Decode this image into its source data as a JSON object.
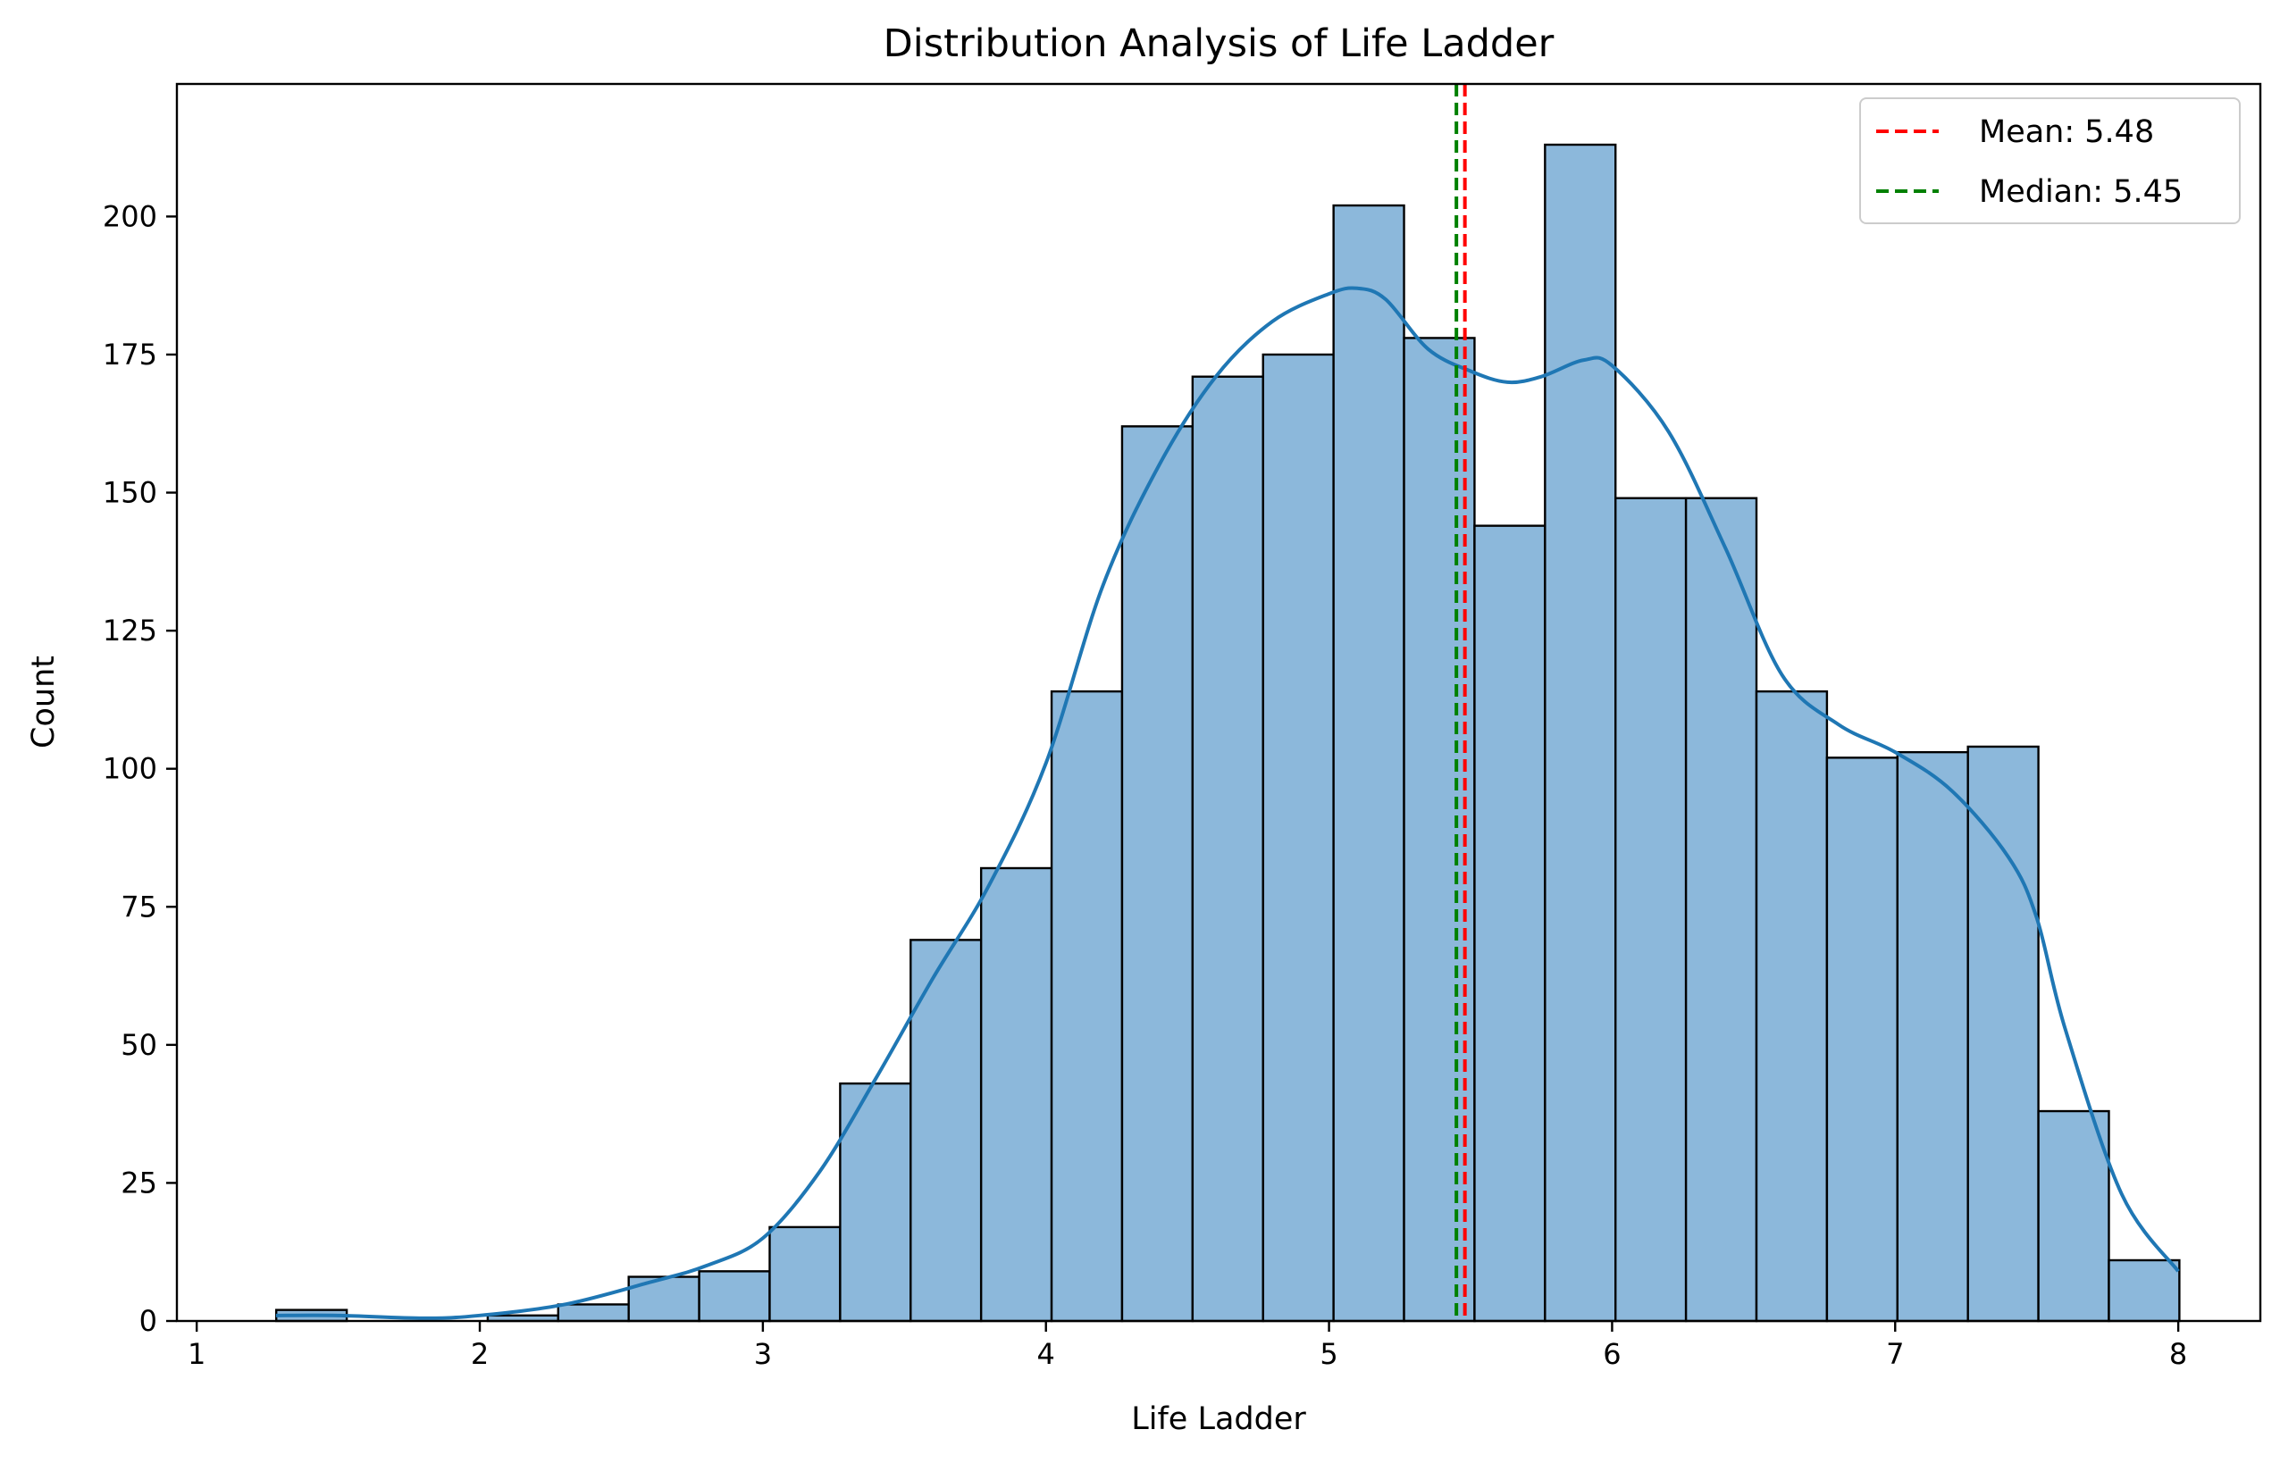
{
  "chart_data": {
    "type": "histogram",
    "title": "Distribution Analysis of Life Ladder",
    "xlabel": "Life Ladder",
    "ylabel": "Count",
    "xlim": [
      0.93,
      8.29
    ],
    "ylim": [
      0,
      224
    ],
    "xticks": [
      1,
      2,
      3,
      4,
      5,
      6,
      7,
      8
    ],
    "yticks": [
      0,
      25,
      50,
      75,
      100,
      125,
      150,
      175,
      200
    ],
    "grid": false,
    "legend_position": "top-right",
    "bar_color": "#8cb8db",
    "edge_color": "#000000",
    "bin_edges": [
      1.281,
      1.53,
      1.779,
      2.028,
      2.277,
      2.526,
      2.775,
      3.024,
      3.273,
      3.522,
      3.771,
      4.02,
      4.269,
      4.518,
      4.767,
      5.016,
      5.265,
      5.514,
      5.763,
      6.012,
      6.261,
      6.51,
      6.759,
      7.008,
      7.257,
      7.506,
      7.755,
      8.004
    ],
    "counts": [
      2,
      0,
      0,
      1,
      3,
      8,
      9,
      17,
      43,
      69,
      82,
      114,
      162,
      171,
      175,
      202,
      178,
      144,
      213,
      149,
      149,
      114,
      102,
      103,
      104,
      38,
      11
    ],
    "kde": {
      "color": "#1f77b4",
      "x": [
        1.28,
        1.5,
        1.8,
        2.0,
        2.3,
        2.6,
        2.8,
        3.0,
        3.2,
        3.4,
        3.6,
        3.8,
        4.0,
        4.2,
        4.4,
        4.6,
        4.8,
        5.0,
        5.1,
        5.2,
        5.35,
        5.5,
        5.63,
        5.75,
        5.9,
        6.0,
        6.2,
        6.4,
        6.6,
        6.8,
        7.0,
        7.2,
        7.4,
        7.5,
        7.6,
        7.8,
        8.0
      ],
      "y": [
        1,
        1,
        0.5,
        1,
        3,
        7,
        10,
        15,
        27,
        44,
        62,
        79,
        101,
        133,
        155,
        171,
        181,
        186,
        187,
        185,
        176,
        172,
        170,
        171,
        174,
        173,
        161,
        140,
        117,
        108,
        103,
        96,
        84,
        73,
        53,
        23,
        9
      ]
    },
    "reference_lines": [
      {
        "name": "Mean: 5.48",
        "x": 5.48,
        "color": "#ff0000"
      },
      {
        "name": "Median: 5.45",
        "x": 5.45,
        "color": "#008000"
      }
    ]
  }
}
